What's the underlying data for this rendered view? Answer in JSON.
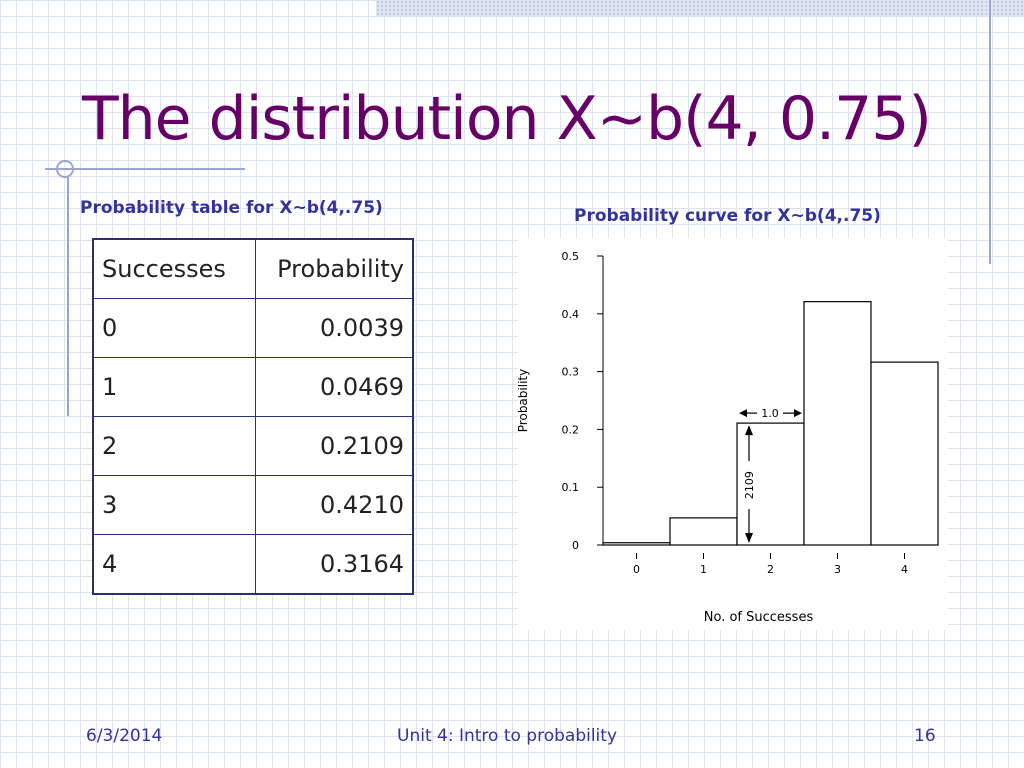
{
  "slide": {
    "title": "The distribution X~b(4, 0.75)",
    "table_caption": "Probability table for X~b(4,.75)",
    "chart_caption": "Probability curve for X~b(4,.75)",
    "colors": {
      "title": "#660066",
      "caption": "#333399",
      "table_border": "#2b2f77"
    }
  },
  "table": {
    "headers": [
      "Successes",
      "Probability"
    ],
    "rows": [
      [
        "0",
        "0.0039"
      ],
      [
        "1",
        "0.0469"
      ],
      [
        "2",
        "0.2109"
      ],
      [
        "3",
        "0.4210"
      ],
      [
        "4",
        "0.3164"
      ]
    ]
  },
  "chart_data": {
    "type": "bar",
    "categories": [
      "0",
      "1",
      "2",
      "3",
      "4"
    ],
    "values": [
      0.0039,
      0.0469,
      0.2109,
      0.421,
      0.3164
    ],
    "xlabel": "No. of Successes",
    "ylabel": "Probability",
    "ylim": [
      0,
      0.5
    ],
    "yticks": [
      "0",
      "0.1",
      "0.2",
      "0.3",
      "0.4",
      "0.5"
    ],
    "grid": false,
    "annotations": {
      "width_label": "1.0",
      "height_label": "2109"
    }
  },
  "footer": {
    "date": "6/3/2014",
    "center": "Unit 4: Intro to probability",
    "page": "16"
  }
}
